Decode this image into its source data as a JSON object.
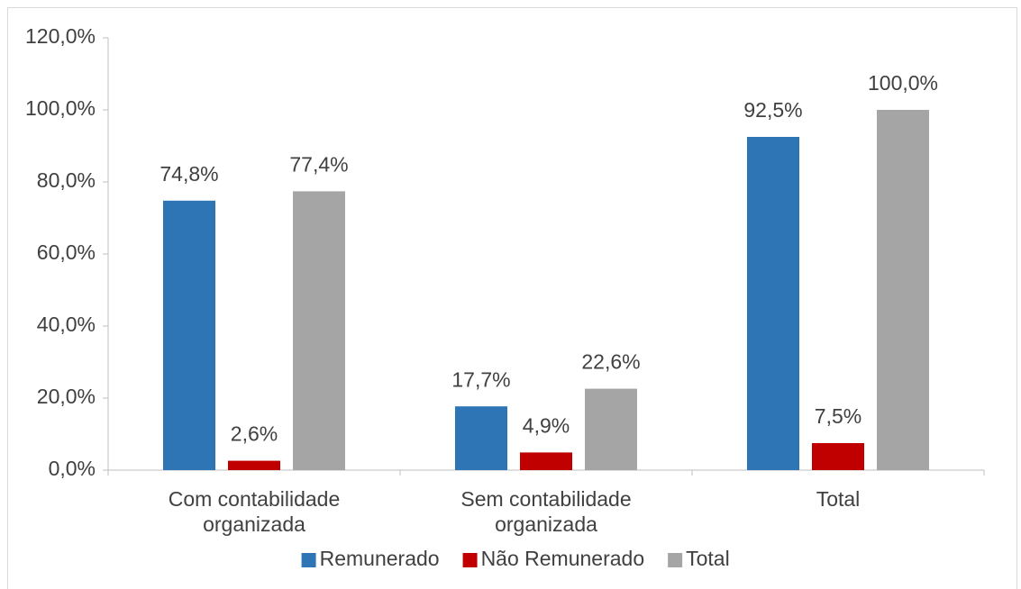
{
  "chart_data": {
    "type": "bar",
    "categories": [
      "Com contabilidade organizada",
      "Sem contabilidade organizada",
      "Total"
    ],
    "series": [
      {
        "name": "Remunerado",
        "color": "#2e75b6",
        "values": [
          74.8,
          17.7,
          92.5
        ],
        "value_labels": [
          "74,8%",
          "17,7%",
          "92,5%"
        ]
      },
      {
        "name": "Não Remunerado",
        "color": "#c00000",
        "values": [
          2.6,
          4.9,
          7.5
        ],
        "value_labels": [
          "2,6%",
          "4,9%",
          "7,5%"
        ]
      },
      {
        "name": "Total",
        "color": "#a5a5a5",
        "values": [
          77.4,
          22.6,
          100.0
        ],
        "value_labels": [
          "77,4%",
          "22,6%",
          "100,0%"
        ]
      }
    ],
    "ylim": [
      0,
      120
    ],
    "yticks": [
      {
        "value": 0,
        "label": "0,0%"
      },
      {
        "value": 20,
        "label": "20,0%"
      },
      {
        "value": 40,
        "label": "40,0%"
      },
      {
        "value": 60,
        "label": "60,0%"
      },
      {
        "value": 80,
        "label": "80,0%"
      },
      {
        "value": 100,
        "label": "100,0%"
      },
      {
        "value": 120,
        "label": "120,0%"
      }
    ],
    "grid": false,
    "legend": "bottom"
  }
}
